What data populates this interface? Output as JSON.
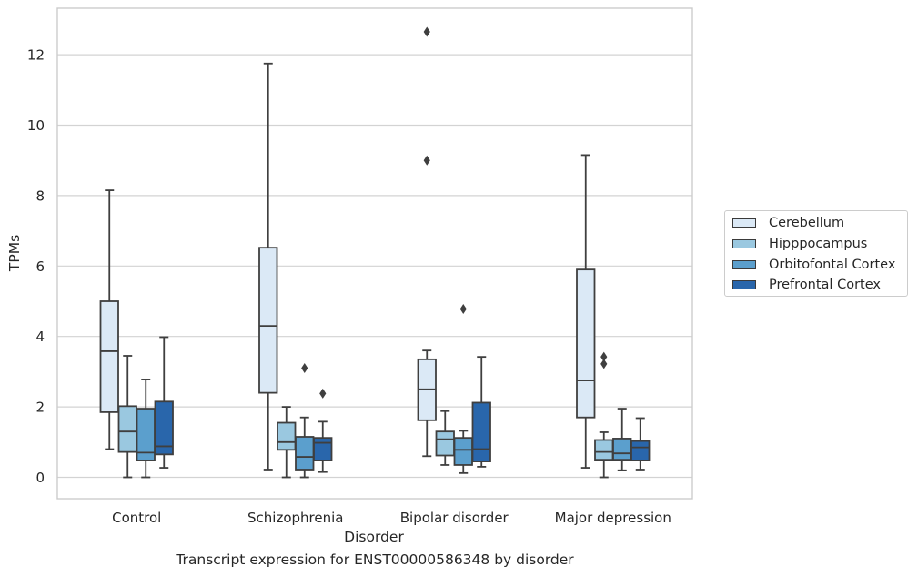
{
  "chart_data": {
    "type": "box",
    "xlabel": "Disorder",
    "ylabel": "TPMs",
    "caption": "Transcript expression for ENST00000586348 by disorder",
    "ylim": [
      -0.6,
      13.3
    ],
    "yticks": [
      "0",
      "2",
      "4",
      "6",
      "8",
      "10",
      "12"
    ],
    "categories": [
      "Control",
      "Schizophrenia",
      "Bipolar disorder",
      "Major depression"
    ],
    "grid": "horizontal",
    "legend_position": "right",
    "series": [
      {
        "name": "Cerebellum",
        "color": "#dbe9f6",
        "boxes": [
          {
            "whislo": 0.8,
            "q1": 1.85,
            "med": 3.58,
            "q3": 5.0,
            "whishi": 8.15,
            "fliers": []
          },
          {
            "whislo": 0.22,
            "q1": 2.4,
            "med": 4.3,
            "q3": 6.52,
            "whishi": 11.75,
            "fliers": []
          },
          {
            "whislo": 0.6,
            "q1": 1.62,
            "med": 2.5,
            "q3": 3.35,
            "whishi": 3.6,
            "fliers": [
              9.0,
              12.65
            ]
          },
          {
            "whislo": 0.27,
            "q1": 1.7,
            "med": 2.75,
            "q3": 5.9,
            "whishi": 9.15,
            "fliers": []
          }
        ]
      },
      {
        "name": "Hipppocampus",
        "color": "#9ac8e0",
        "boxes": [
          {
            "whislo": 0.0,
            "q1": 0.72,
            "med": 1.3,
            "q3": 2.02,
            "whishi": 3.45,
            "fliers": []
          },
          {
            "whislo": 0.0,
            "q1": 0.78,
            "med": 1.0,
            "q3": 1.55,
            "whishi": 2.0,
            "fliers": []
          },
          {
            "whislo": 0.35,
            "q1": 0.62,
            "med": 1.08,
            "q3": 1.3,
            "whishi": 1.88,
            "fliers": []
          },
          {
            "whislo": 0.0,
            "q1": 0.5,
            "med": 0.72,
            "q3": 1.06,
            "whishi": 1.28,
            "fliers": [
              3.22,
              3.42
            ]
          }
        ]
      },
      {
        "name": "Orbitofontal Cortex",
        "color": "#5b9fcd",
        "boxes": [
          {
            "whislo": 0.0,
            "q1": 0.48,
            "med": 0.7,
            "q3": 1.95,
            "whishi": 2.78,
            "fliers": []
          },
          {
            "whislo": 0.0,
            "q1": 0.22,
            "med": 0.58,
            "q3": 1.15,
            "whishi": 1.7,
            "fliers": [
              3.1
            ]
          },
          {
            "whislo": 0.12,
            "q1": 0.35,
            "med": 0.78,
            "q3": 1.12,
            "whishi": 1.32,
            "fliers": [
              4.78
            ]
          },
          {
            "whislo": 0.2,
            "q1": 0.5,
            "med": 0.68,
            "q3": 1.1,
            "whishi": 1.95,
            "fliers": []
          }
        ]
      },
      {
        "name": "Prefrontal Cortex",
        "color": "#2966ab",
        "boxes": [
          {
            "whislo": 0.27,
            "q1": 0.65,
            "med": 0.88,
            "q3": 2.15,
            "whishi": 3.98,
            "fliers": []
          },
          {
            "whislo": 0.15,
            "q1": 0.48,
            "med": 0.98,
            "q3": 1.12,
            "whishi": 1.58,
            "fliers": [
              2.38
            ]
          },
          {
            "whislo": 0.3,
            "q1": 0.45,
            "med": 0.8,
            "q3": 2.12,
            "whishi": 3.42,
            "fliers": []
          },
          {
            "whislo": 0.22,
            "q1": 0.48,
            "med": 0.85,
            "q3": 1.03,
            "whishi": 1.68,
            "fliers": []
          }
        ]
      }
    ]
  }
}
